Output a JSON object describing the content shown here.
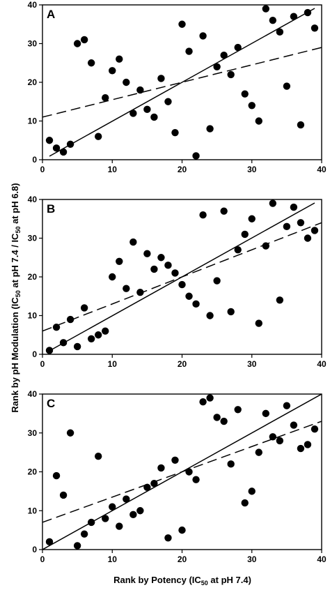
{
  "chart_data": [
    {
      "type": "scatter",
      "panel_label": "A",
      "xlim": [
        0,
        40
      ],
      "ylim": [
        0,
        40
      ],
      "xticks": [
        0,
        10,
        20,
        30,
        40
      ],
      "yticks": [
        0,
        10,
        20,
        30,
        40
      ],
      "points": [
        [
          1,
          5
        ],
        [
          2,
          3
        ],
        [
          3,
          2
        ],
        [
          4,
          4
        ],
        [
          5,
          30
        ],
        [
          6,
          31
        ],
        [
          7,
          25
        ],
        [
          8,
          6
        ],
        [
          9,
          16
        ],
        [
          10,
          23
        ],
        [
          11,
          26
        ],
        [
          12,
          20
        ],
        [
          13,
          12
        ],
        [
          14,
          18
        ],
        [
          15,
          13
        ],
        [
          16,
          11
        ],
        [
          17,
          21
        ],
        [
          18,
          15
        ],
        [
          19,
          7
        ],
        [
          20,
          35
        ],
        [
          21,
          28
        ],
        [
          22,
          1
        ],
        [
          23,
          32
        ],
        [
          24,
          8
        ],
        [
          25,
          24
        ],
        [
          26,
          27
        ],
        [
          27,
          22
        ],
        [
          28,
          29
        ],
        [
          29,
          17
        ],
        [
          30,
          14
        ],
        [
          31,
          10
        ],
        [
          32,
          39
        ],
        [
          33,
          36
        ],
        [
          34,
          33
        ],
        [
          35,
          19
        ],
        [
          36,
          37
        ],
        [
          37,
          9
        ],
        [
          38,
          38
        ],
        [
          39,
          34
        ]
      ],
      "fit_solid": [
        [
          1,
          0.9
        ],
        [
          39,
          39.1
        ]
      ],
      "fit_dashed": [
        [
          0,
          11
        ],
        [
          40,
          29
        ]
      ]
    },
    {
      "type": "scatter",
      "panel_label": "B",
      "xlim": [
        0,
        40
      ],
      "ylim": [
        0,
        40
      ],
      "xticks": [
        0,
        10,
        20,
        30,
        40
      ],
      "yticks": [
        0,
        10,
        20,
        30,
        40
      ],
      "points": [
        [
          1,
          1
        ],
        [
          2,
          7
        ],
        [
          3,
          3
        ],
        [
          4,
          9
        ],
        [
          5,
          2
        ],
        [
          6,
          12
        ],
        [
          7,
          4
        ],
        [
          8,
          5
        ],
        [
          9,
          6
        ],
        [
          10,
          20
        ],
        [
          11,
          24
        ],
        [
          12,
          17
        ],
        [
          13,
          29
        ],
        [
          14,
          16
        ],
        [
          15,
          26
        ],
        [
          16,
          22
        ],
        [
          17,
          25
        ],
        [
          18,
          23
        ],
        [
          19,
          21
        ],
        [
          20,
          18
        ],
        [
          21,
          15
        ],
        [
          22,
          13
        ],
        [
          23,
          36
        ],
        [
          24,
          10
        ],
        [
          25,
          19
        ],
        [
          26,
          37
        ],
        [
          27,
          11
        ],
        [
          28,
          27
        ],
        [
          29,
          31
        ],
        [
          30,
          35
        ],
        [
          31,
          8
        ],
        [
          32,
          28
        ],
        [
          33,
          39
        ],
        [
          34,
          14
        ],
        [
          35,
          33
        ],
        [
          36,
          38
        ],
        [
          37,
          34
        ],
        [
          38,
          30
        ],
        [
          39,
          32
        ]
      ],
      "fit_solid": [
        [
          1,
          0.9
        ],
        [
          39,
          39.1
        ]
      ],
      "fit_dashed": [
        [
          0,
          6
        ],
        [
          40,
          34
        ]
      ]
    },
    {
      "type": "scatter",
      "panel_label": "C",
      "xlim": [
        0,
        40
      ],
      "ylim": [
        0,
        40
      ],
      "xticks": [
        0,
        10,
        20,
        30,
        40
      ],
      "yticks": [
        0,
        10,
        20,
        30,
        40
      ],
      "points": [
        [
          1,
          2
        ],
        [
          2,
          19
        ],
        [
          3,
          14
        ],
        [
          4,
          30
        ],
        [
          5,
          1
        ],
        [
          6,
          4
        ],
        [
          7,
          7
        ],
        [
          8,
          24
        ],
        [
          9,
          8
        ],
        [
          10,
          11
        ],
        [
          11,
          6
        ],
        [
          12,
          13
        ],
        [
          13,
          9
        ],
        [
          14,
          10
        ],
        [
          15,
          16
        ],
        [
          16,
          17
        ],
        [
          17,
          21
        ],
        [
          18,
          3
        ],
        [
          19,
          23
        ],
        [
          20,
          5
        ],
        [
          21,
          20
        ],
        [
          22,
          18
        ],
        [
          23,
          38
        ],
        [
          24,
          39
        ],
        [
          25,
          34
        ],
        [
          26,
          33
        ],
        [
          27,
          22
        ],
        [
          28,
          36
        ],
        [
          29,
          12
        ],
        [
          30,
          15
        ],
        [
          31,
          25
        ],
        [
          32,
          35
        ],
        [
          33,
          29
        ],
        [
          34,
          28
        ],
        [
          35,
          37
        ],
        [
          36,
          32
        ],
        [
          37,
          26
        ],
        [
          38,
          27
        ],
        [
          39,
          31
        ]
      ],
      "fit_solid": [
        [
          0,
          0
        ],
        [
          40,
          40
        ]
      ],
      "fit_dashed": [
        [
          0,
          7
        ],
        [
          40,
          33
        ]
      ]
    }
  ],
  "ylabel_parts": [
    "Rank by pH Modulation (IC",
    "50",
    " at pH 7.4 / IC",
    "50",
    " at pH 6.8)"
  ],
  "xlabel_parts": [
    "Rank by Potency (IC",
    "50",
    " at pH 7.4)"
  ]
}
